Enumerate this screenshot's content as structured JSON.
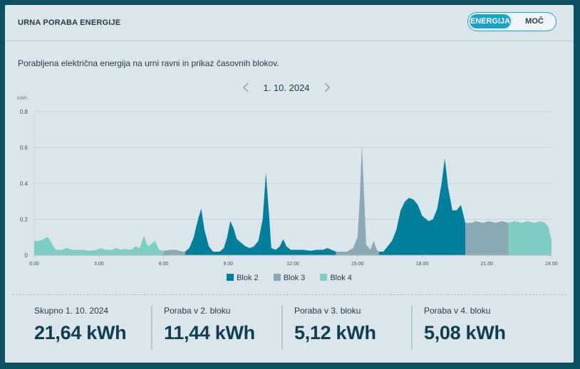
{
  "header": {
    "title": "URNA PORABA ENERGIJE"
  },
  "toggle": {
    "active_label": "ENERGIJA",
    "inactive_label": "MOČ"
  },
  "subtitle": "Porabljena električna energija na urni ravni in prikaz časovnih blokov.",
  "date_nav": {
    "date": "1. 10. 2024"
  },
  "colors": {
    "blok2": "#007f9b",
    "blok3": "#8aa9b5",
    "blok4": "#7ecdc4",
    "accent": "#1aa2c8"
  },
  "chart_data": {
    "type": "area",
    "ylabel": "kWh",
    "ylim": [
      0,
      0.8
    ],
    "yticks": [
      "0",
      "0.2",
      "0.4",
      "0.6",
      "0.8"
    ],
    "xlim": [
      0,
      24
    ],
    "xticks": [
      "0.00",
      "3.00",
      "6.00",
      "9.00",
      "12.00",
      "15.00",
      "18.00",
      "21.00",
      "24.00"
    ],
    "legend": [
      "Blok 2",
      "Blok 3",
      "Blok 4"
    ],
    "legend_position": "bottom",
    "grid": true,
    "segments": [
      {
        "block": "Blok 4",
        "from": 0,
        "to": 6
      },
      {
        "block": "Blok 3",
        "from": 6,
        "to": 7
      },
      {
        "block": "Blok 2",
        "from": 7,
        "to": 14
      },
      {
        "block": "Blok 3",
        "from": 14,
        "to": 16
      },
      {
        "block": "Blok 2",
        "from": 16,
        "to": 20
      },
      {
        "block": "Blok 3",
        "from": 20,
        "to": 22
      },
      {
        "block": "Blok 4",
        "from": 22,
        "to": 24
      }
    ],
    "points": [
      [
        0.0,
        0.08
      ],
      [
        0.25,
        0.08
      ],
      [
        0.45,
        0.09
      ],
      [
        0.55,
        0.1
      ],
      [
        0.65,
        0.1
      ],
      [
        0.8,
        0.07
      ],
      [
        1.0,
        0.03
      ],
      [
        1.3,
        0.03
      ],
      [
        1.5,
        0.04
      ],
      [
        1.8,
        0.03
      ],
      [
        2.0,
        0.03
      ],
      [
        2.3,
        0.03
      ],
      [
        2.6,
        0.025
      ],
      [
        2.9,
        0.03
      ],
      [
        3.1,
        0.04
      ],
      [
        3.3,
        0.03
      ],
      [
        3.6,
        0.03
      ],
      [
        3.8,
        0.04
      ],
      [
        4.0,
        0.03
      ],
      [
        4.2,
        0.035
      ],
      [
        4.5,
        0.03
      ],
      [
        4.7,
        0.05
      ],
      [
        4.9,
        0.04
      ],
      [
        5.0,
        0.08
      ],
      [
        5.1,
        0.11
      ],
      [
        5.2,
        0.07
      ],
      [
        5.3,
        0.05
      ],
      [
        5.5,
        0.07
      ],
      [
        5.6,
        0.08
      ],
      [
        5.8,
        0.03
      ],
      [
        6.0,
        0.025
      ],
      [
        6.3,
        0.03
      ],
      [
        6.6,
        0.03
      ],
      [
        6.9,
        0.02
      ],
      [
        7.0,
        0.02
      ],
      [
        7.2,
        0.04
      ],
      [
        7.4,
        0.1
      ],
      [
        7.6,
        0.2
      ],
      [
        7.75,
        0.26
      ],
      [
        7.9,
        0.14
      ],
      [
        8.1,
        0.05
      ],
      [
        8.3,
        0.02
      ],
      [
        8.6,
        0.02
      ],
      [
        8.8,
        0.04
      ],
      [
        8.95,
        0.1
      ],
      [
        9.1,
        0.19
      ],
      [
        9.25,
        0.15
      ],
      [
        9.4,
        0.09
      ],
      [
        9.6,
        0.07
      ],
      [
        9.8,
        0.05
      ],
      [
        10.0,
        0.04
      ],
      [
        10.2,
        0.05
      ],
      [
        10.4,
        0.08
      ],
      [
        10.6,
        0.2
      ],
      [
        10.75,
        0.46
      ],
      [
        10.9,
        0.22
      ],
      [
        11.0,
        0.04
      ],
      [
        11.2,
        0.03
      ],
      [
        11.4,
        0.05
      ],
      [
        11.55,
        0.09
      ],
      [
        11.7,
        0.05
      ],
      [
        11.9,
        0.03
      ],
      [
        12.2,
        0.03
      ],
      [
        12.5,
        0.03
      ],
      [
        12.8,
        0.025
      ],
      [
        13.1,
        0.03
      ],
      [
        13.4,
        0.03
      ],
      [
        13.6,
        0.04
      ],
      [
        13.8,
        0.03
      ],
      [
        14.0,
        0.02
      ],
      [
        14.2,
        0.02
      ],
      [
        14.5,
        0.02
      ],
      [
        14.8,
        0.04
      ],
      [
        15.0,
        0.1
      ],
      [
        15.1,
        0.3
      ],
      [
        15.2,
        0.61
      ],
      [
        15.3,
        0.35
      ],
      [
        15.4,
        0.06
      ],
      [
        15.6,
        0.03
      ],
      [
        15.75,
        0.08
      ],
      [
        15.9,
        0.03
      ],
      [
        16.0,
        0.02
      ],
      [
        16.2,
        0.02
      ],
      [
        16.4,
        0.05
      ],
      [
        16.6,
        0.08
      ],
      [
        16.8,
        0.14
      ],
      [
        17.0,
        0.25
      ],
      [
        17.2,
        0.3
      ],
      [
        17.4,
        0.32
      ],
      [
        17.6,
        0.31
      ],
      [
        17.8,
        0.28
      ],
      [
        18.0,
        0.22
      ],
      [
        18.3,
        0.19
      ],
      [
        18.5,
        0.2
      ],
      [
        18.7,
        0.26
      ],
      [
        18.9,
        0.4
      ],
      [
        19.05,
        0.54
      ],
      [
        19.2,
        0.38
      ],
      [
        19.4,
        0.25
      ],
      [
        19.6,
        0.25
      ],
      [
        19.8,
        0.28
      ],
      [
        20.0,
        0.18
      ],
      [
        20.3,
        0.18
      ],
      [
        20.5,
        0.19
      ],
      [
        20.8,
        0.18
      ],
      [
        21.1,
        0.19
      ],
      [
        21.4,
        0.18
      ],
      [
        21.7,
        0.19
      ],
      [
        22.0,
        0.18
      ],
      [
        22.3,
        0.19
      ],
      [
        22.6,
        0.18
      ],
      [
        22.9,
        0.19
      ],
      [
        23.2,
        0.18
      ],
      [
        23.5,
        0.19
      ],
      [
        23.7,
        0.18
      ],
      [
        23.85,
        0.16
      ],
      [
        24.0,
        0.08
      ]
    ]
  },
  "stats": [
    {
      "label": "Skupno 1. 10. 2024",
      "value": "21,64 kWh"
    },
    {
      "label": "Poraba v 2. bloku",
      "value": "11,44 kWh"
    },
    {
      "label": "Poraba v 3. bloku",
      "value": "5,12 kWh"
    },
    {
      "label": "Poraba v 4. bloku",
      "value": "5,08 kWh"
    }
  ]
}
